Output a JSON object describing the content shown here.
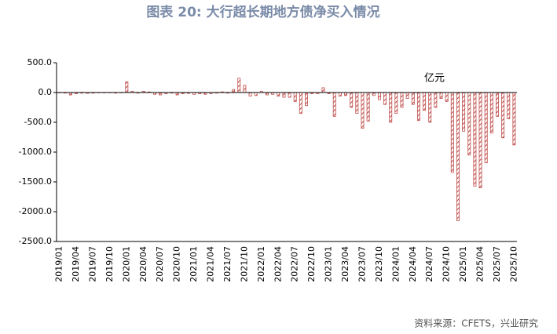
{
  "chart_data": {
    "type": "bar",
    "title": "图表 20: 大行超长期地方债净买入情况",
    "annotation": "亿元",
    "source": "资料来源：CFETS，兴业研究",
    "categories": [
      "2019/01",
      null,
      null,
      "2019/04",
      null,
      null,
      "2019/07",
      null,
      null,
      "2019/10",
      null,
      null,
      "2020/01",
      null,
      null,
      "2020/04",
      null,
      null,
      "2020/07",
      null,
      null,
      "2020/10",
      null,
      null,
      "2021/01",
      null,
      null,
      "2021/04",
      null,
      null,
      "2021/07",
      null,
      null,
      "2021/10",
      null,
      null,
      "2022/01",
      null,
      null,
      "2022/04",
      null,
      null,
      "2022/07",
      null,
      null,
      "2022/10",
      null,
      null,
      "2023/01",
      null,
      null,
      "2023/04",
      null,
      null,
      "2023/07",
      null,
      null,
      "2023/10",
      null,
      null,
      "2024/01",
      null,
      null,
      "2024/04",
      null,
      null,
      "2024/07",
      null,
      null,
      "2024/10",
      null,
      null,
      "2025/01",
      null,
      null,
      "2025/04",
      null,
      null,
      "2025/07",
      null,
      null,
      "2025/10"
    ],
    "values": [
      -5,
      -10,
      -40,
      -20,
      -10,
      -15,
      -10,
      -5,
      -5,
      -5,
      -10,
      -5,
      180,
      20,
      -10,
      20,
      10,
      -30,
      -40,
      -20,
      -10,
      -40,
      -20,
      -15,
      -30,
      -20,
      -30,
      -20,
      -10,
      10,
      -10,
      50,
      240,
      120,
      -60,
      -50,
      20,
      -40,
      -30,
      -60,
      -80,
      -80,
      -150,
      -350,
      -220,
      -20,
      -20,
      80,
      -20,
      -400,
      -60,
      -50,
      -250,
      -350,
      -600,
      -480,
      -50,
      -120,
      -200,
      -500,
      -350,
      -250,
      -100,
      -200,
      -470,
      -300,
      -500,
      -250,
      -100,
      -150,
      -1340,
      -2150,
      -650,
      -1050,
      -1570,
      -1600,
      -1180,
      -680,
      -400,
      -760,
      -440,
      -880
    ],
    "color": "#c0504d",
    "ylim": [
      -2500,
      500
    ],
    "yticks": [
      {
        "value": 500,
        "label": "500.0"
      },
      {
        "value": 0,
        "label": "0.0"
      },
      {
        "value": -500,
        "label": "-500.0"
      },
      {
        "value": -1000,
        "label": "-1000.0"
      },
      {
        "value": -1500,
        "label": "-1500.0"
      },
      {
        "value": -2000,
        "label": "-2000.0"
      },
      {
        "value": -2500,
        "label": "-2500.0"
      }
    ],
    "grid": false
  }
}
